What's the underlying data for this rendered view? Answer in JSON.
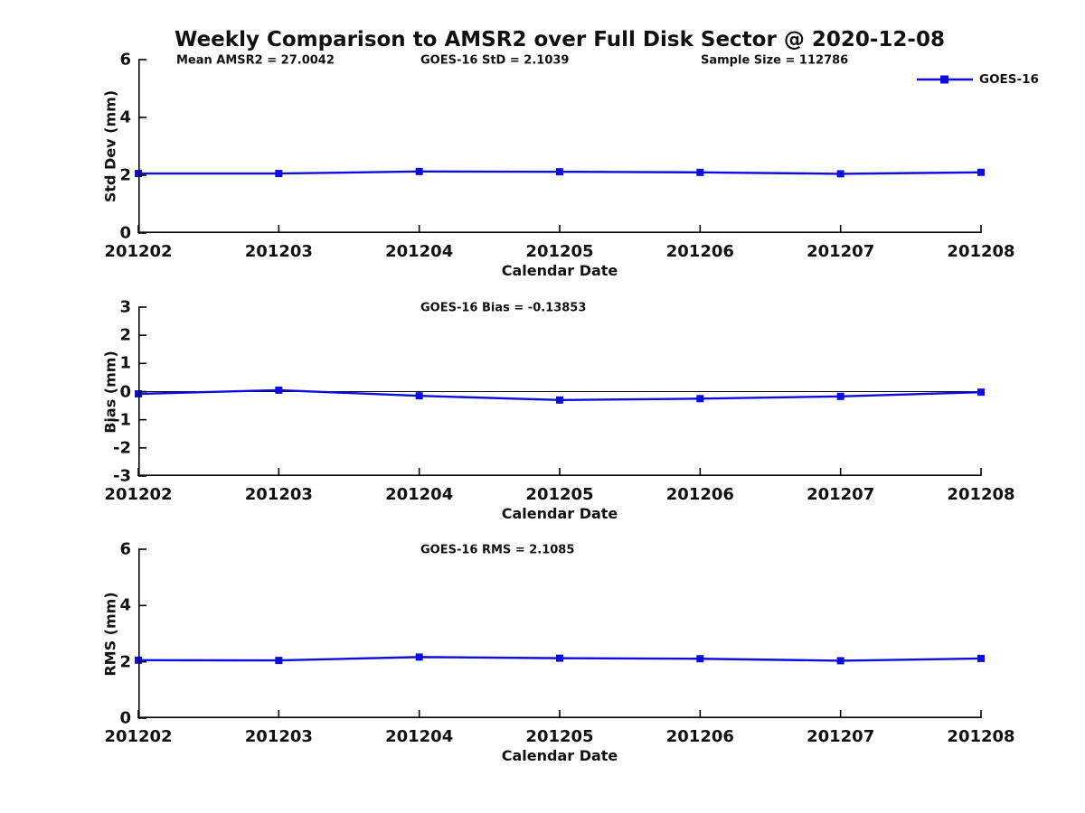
{
  "title": "Weekly Comparison to AMSR2 over Full Disk Sector @ 2020-12-08",
  "colors": {
    "series_blue": "#0d0de0",
    "axis_black": "#000000"
  },
  "legend": {
    "label": "GOES-16"
  },
  "chart_data": [
    {
      "type": "line",
      "annotations": [
        "Mean AMSR2 = 27.0042",
        "GOES-16 StD = 2.1039",
        "Sample Size = 112786"
      ],
      "categories": [
        "201202",
        "201203",
        "201204",
        "201205",
        "201206",
        "201207",
        "201208"
      ],
      "series": [
        {
          "name": "GOES-16",
          "color": "#0d0de0",
          "marker": "square",
          "values": [
            2.06,
            2.06,
            2.13,
            2.12,
            2.1,
            2.05,
            2.1
          ]
        }
      ],
      "xlabel": "Calendar Date",
      "ylabel": "Std Dev (mm)",
      "ylim": [
        0,
        6
      ],
      "yticks": [
        0,
        2,
        4,
        6
      ],
      "zero_line": false,
      "legend_visible": true,
      "legend_position": "top-right",
      "grid": false
    },
    {
      "type": "line",
      "annotations": [
        "GOES-16 Bias  = -0.13853"
      ],
      "categories": [
        "201202",
        "201203",
        "201204",
        "201205",
        "201206",
        "201207",
        "201208"
      ],
      "series": [
        {
          "name": "GOES-16",
          "color": "#0d0de0",
          "marker": "square",
          "values": [
            -0.08,
            0.05,
            -0.15,
            -0.3,
            -0.25,
            -0.17,
            -0.02
          ]
        }
      ],
      "xlabel": "Calendar Date",
      "ylabel": "Bias (mm)",
      "ylim": [
        -3,
        3
      ],
      "yticks": [
        -3,
        -2,
        -1,
        0,
        1,
        2,
        3
      ],
      "zero_line": true,
      "legend_visible": false,
      "grid": false
    },
    {
      "type": "line",
      "annotations": [
        "GOES-16 RMS = 2.1085"
      ],
      "categories": [
        "201202",
        "201203",
        "201204",
        "201205",
        "201206",
        "201207",
        "201208"
      ],
      "series": [
        {
          "name": "GOES-16",
          "color": "#0d0de0",
          "marker": "square",
          "values": [
            2.06,
            2.05,
            2.17,
            2.13,
            2.11,
            2.04,
            2.12
          ]
        }
      ],
      "xlabel": "Calendar Date",
      "ylabel": "RMS (mm)",
      "ylim": [
        0,
        6
      ],
      "yticks": [
        0,
        2,
        4,
        6
      ],
      "zero_line": false,
      "legend_visible": false,
      "grid": false
    }
  ]
}
